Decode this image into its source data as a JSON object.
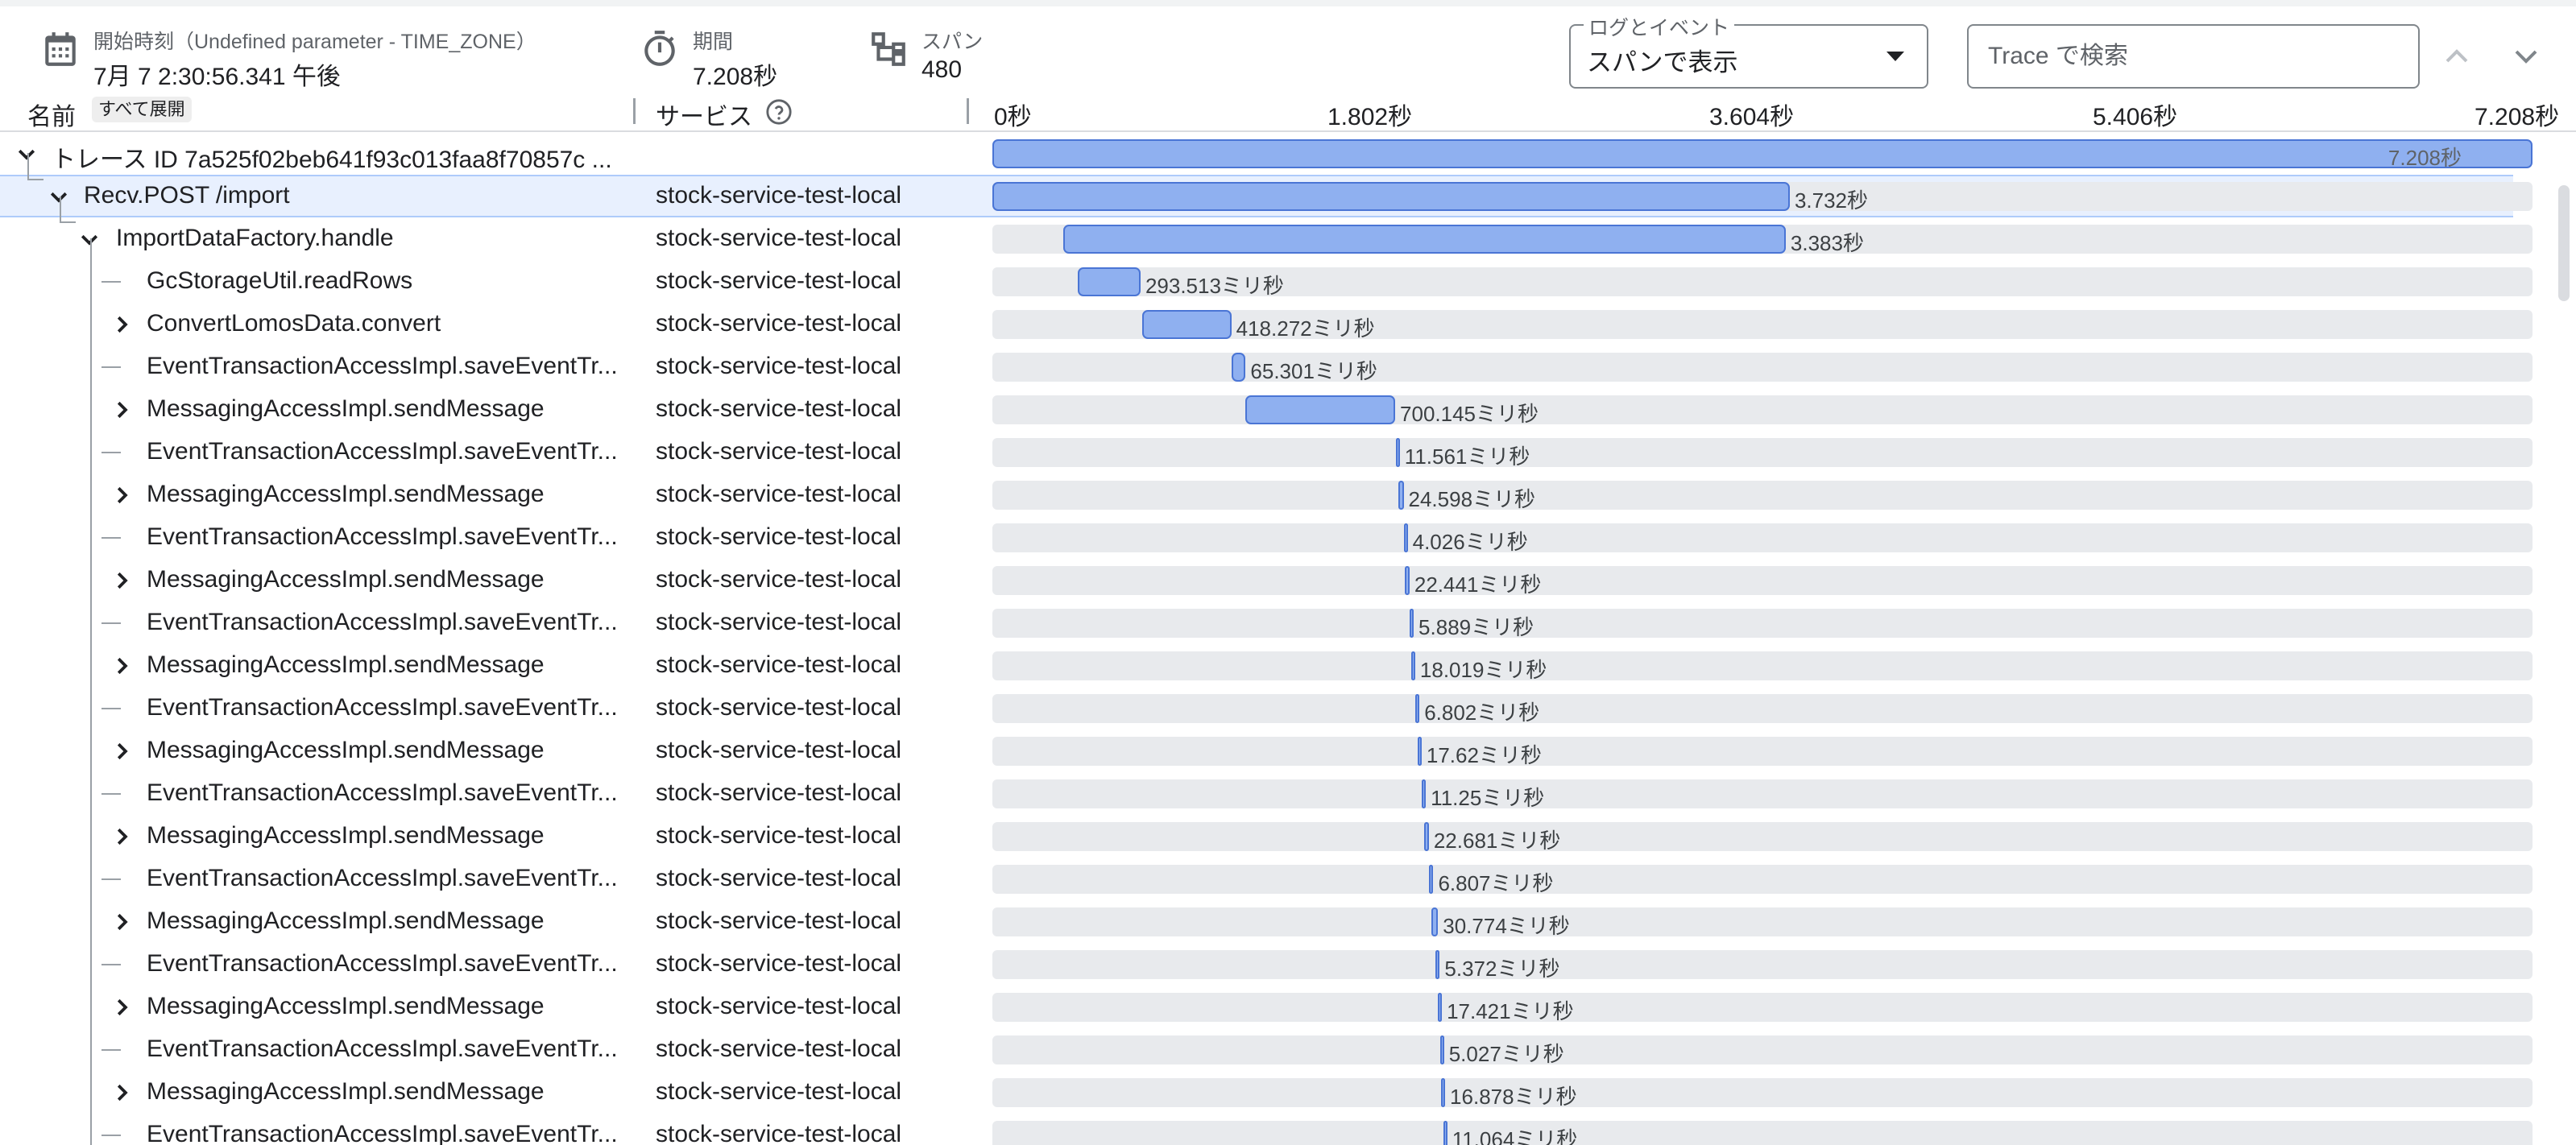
{
  "header": {
    "start": {
      "label": "開始時刻（Undefined parameter - TIME_ZONE）",
      "value": "7月 7 2:30:56.341 午後",
      "icon": "calendar-icon"
    },
    "duration": {
      "label": "期間",
      "value": "7.208秒",
      "icon": "timer-icon"
    },
    "spans": {
      "label": "スパン",
      "value": "480",
      "icon": "span-tree-icon"
    },
    "log_dropdown": {
      "label": "ログとイベント",
      "value": "スパンで表示"
    },
    "search": {
      "placeholder": "Trace で検索"
    }
  },
  "columns": {
    "name": "名前",
    "expand_all": "すべて展開",
    "service": "サービス",
    "ticks": [
      "0秒",
      "1.802秒",
      "3.604秒",
      "5.406秒",
      "7.208秒"
    ],
    "total_seconds": 7.208
  },
  "colors": {
    "bar_fill": "#8fb0f0",
    "bar_border": "#4a75d5",
    "track": "#e8eaed",
    "selected_row": "#e8f0fe"
  },
  "rows": [
    {
      "name": "トレース ID 7a525f02beb641f93c013faa8f70857c ...",
      "service": "",
      "level": 0,
      "expander": "open",
      "start_s": 0,
      "duration_s": 7.208,
      "label": "7.208秒"
    },
    {
      "name": "Recv.POST /import",
      "service": "stock-service-test-local",
      "level": 1,
      "expander": "open",
      "start_s": 0,
      "duration_s": 3.732,
      "label": "3.732秒",
      "selected": true
    },
    {
      "name": "ImportDataFactory.handle",
      "service": "stock-service-test-local",
      "level": 2,
      "expander": "open",
      "start_s": 0.33,
      "duration_s": 3.383,
      "label": "3.383秒"
    },
    {
      "name": "GcStorageUtil.readRows",
      "service": "stock-service-test-local",
      "level": 3,
      "expander": "none",
      "start_s": 0.4,
      "duration_s": 0.2935,
      "label": "293.513ミリ秒"
    },
    {
      "name": "ConvertLomosData.convert",
      "service": "stock-service-test-local",
      "level": 3,
      "expander": "closed",
      "start_s": 0.7,
      "duration_s": 0.4183,
      "label": "418.272ミリ秒"
    },
    {
      "name": "EventTransactionAccessImpl.saveEventTr...",
      "service": "stock-service-test-local",
      "level": 3,
      "expander": "none",
      "start_s": 1.12,
      "duration_s": 0.0653,
      "label": "65.301ミリ秒"
    },
    {
      "name": "MessagingAccessImpl.sendMessage",
      "service": "stock-service-test-local",
      "level": 3,
      "expander": "closed",
      "start_s": 1.185,
      "duration_s": 0.7001,
      "label": "700.145ミリ秒"
    },
    {
      "name": "EventTransactionAccessImpl.saveEventTr...",
      "service": "stock-service-test-local",
      "level": 3,
      "expander": "none",
      "start_s": 1.888,
      "duration_s": 0.0116,
      "label": "11.561ミリ秒"
    },
    {
      "name": "MessagingAccessImpl.sendMessage",
      "service": "stock-service-test-local",
      "level": 3,
      "expander": "closed",
      "start_s": 1.9,
      "duration_s": 0.0246,
      "label": "24.598ミリ秒"
    },
    {
      "name": "EventTransactionAccessImpl.saveEventTr...",
      "service": "stock-service-test-local",
      "level": 3,
      "expander": "none",
      "start_s": 1.925,
      "duration_s": 0.004,
      "label": "4.026ミリ秒"
    },
    {
      "name": "MessagingAccessImpl.sendMessage",
      "service": "stock-service-test-local",
      "level": 3,
      "expander": "closed",
      "start_s": 1.93,
      "duration_s": 0.0224,
      "label": "22.441ミリ秒"
    },
    {
      "name": "EventTransactionAccessImpl.saveEventTr...",
      "service": "stock-service-test-local",
      "level": 3,
      "expander": "none",
      "start_s": 1.953,
      "duration_s": 0.0059,
      "label": "5.889ミリ秒"
    },
    {
      "name": "MessagingAccessImpl.sendMessage",
      "service": "stock-service-test-local",
      "level": 3,
      "expander": "closed",
      "start_s": 1.96,
      "duration_s": 0.018,
      "label": "18.019ミリ秒"
    },
    {
      "name": "EventTransactionAccessImpl.saveEventTr...",
      "service": "stock-service-test-local",
      "level": 3,
      "expander": "none",
      "start_s": 1.98,
      "duration_s": 0.0068,
      "label": "6.802ミリ秒"
    },
    {
      "name": "MessagingAccessImpl.sendMessage",
      "service": "stock-service-test-local",
      "level": 3,
      "expander": "closed",
      "start_s": 1.99,
      "duration_s": 0.0176,
      "label": "17.62ミリ秒"
    },
    {
      "name": "EventTransactionAccessImpl.saveEventTr...",
      "service": "stock-service-test-local",
      "level": 3,
      "expander": "none",
      "start_s": 2.01,
      "duration_s": 0.0113,
      "label": "11.25ミリ秒"
    },
    {
      "name": "MessagingAccessImpl.sendMessage",
      "service": "stock-service-test-local",
      "level": 3,
      "expander": "closed",
      "start_s": 2.02,
      "duration_s": 0.0227,
      "label": "22.681ミリ秒"
    },
    {
      "name": "EventTransactionAccessImpl.saveEventTr...",
      "service": "stock-service-test-local",
      "level": 3,
      "expander": "none",
      "start_s": 2.045,
      "duration_s": 0.0068,
      "label": "6.807ミリ秒"
    },
    {
      "name": "MessagingAccessImpl.sendMessage",
      "service": "stock-service-test-local",
      "level": 3,
      "expander": "closed",
      "start_s": 2.055,
      "duration_s": 0.0308,
      "label": "30.774ミリ秒"
    },
    {
      "name": "EventTransactionAccessImpl.saveEventTr...",
      "service": "stock-service-test-local",
      "level": 3,
      "expander": "none",
      "start_s": 2.075,
      "duration_s": 0.0054,
      "label": "5.372ミリ秒"
    },
    {
      "name": "MessagingAccessImpl.sendMessage",
      "service": "stock-service-test-local",
      "level": 3,
      "expander": "closed",
      "start_s": 2.085,
      "duration_s": 0.0174,
      "label": "17.421ミリ秒"
    },
    {
      "name": "EventTransactionAccessImpl.saveEventTr...",
      "service": "stock-service-test-local",
      "level": 3,
      "expander": "none",
      "start_s": 2.095,
      "duration_s": 0.005,
      "label": "5.027ミリ秒"
    },
    {
      "name": "MessagingAccessImpl.sendMessage",
      "service": "stock-service-test-local",
      "level": 3,
      "expander": "closed",
      "start_s": 2.1,
      "duration_s": 0.0169,
      "label": "16.878ミリ秒"
    },
    {
      "name": "EventTransactionAccessImpl.saveEventTr...",
      "service": "stock-service-test-local",
      "level": 3,
      "expander": "none",
      "start_s": 2.11,
      "duration_s": 0.0111,
      "label": "11.064ミリ秒"
    }
  ]
}
